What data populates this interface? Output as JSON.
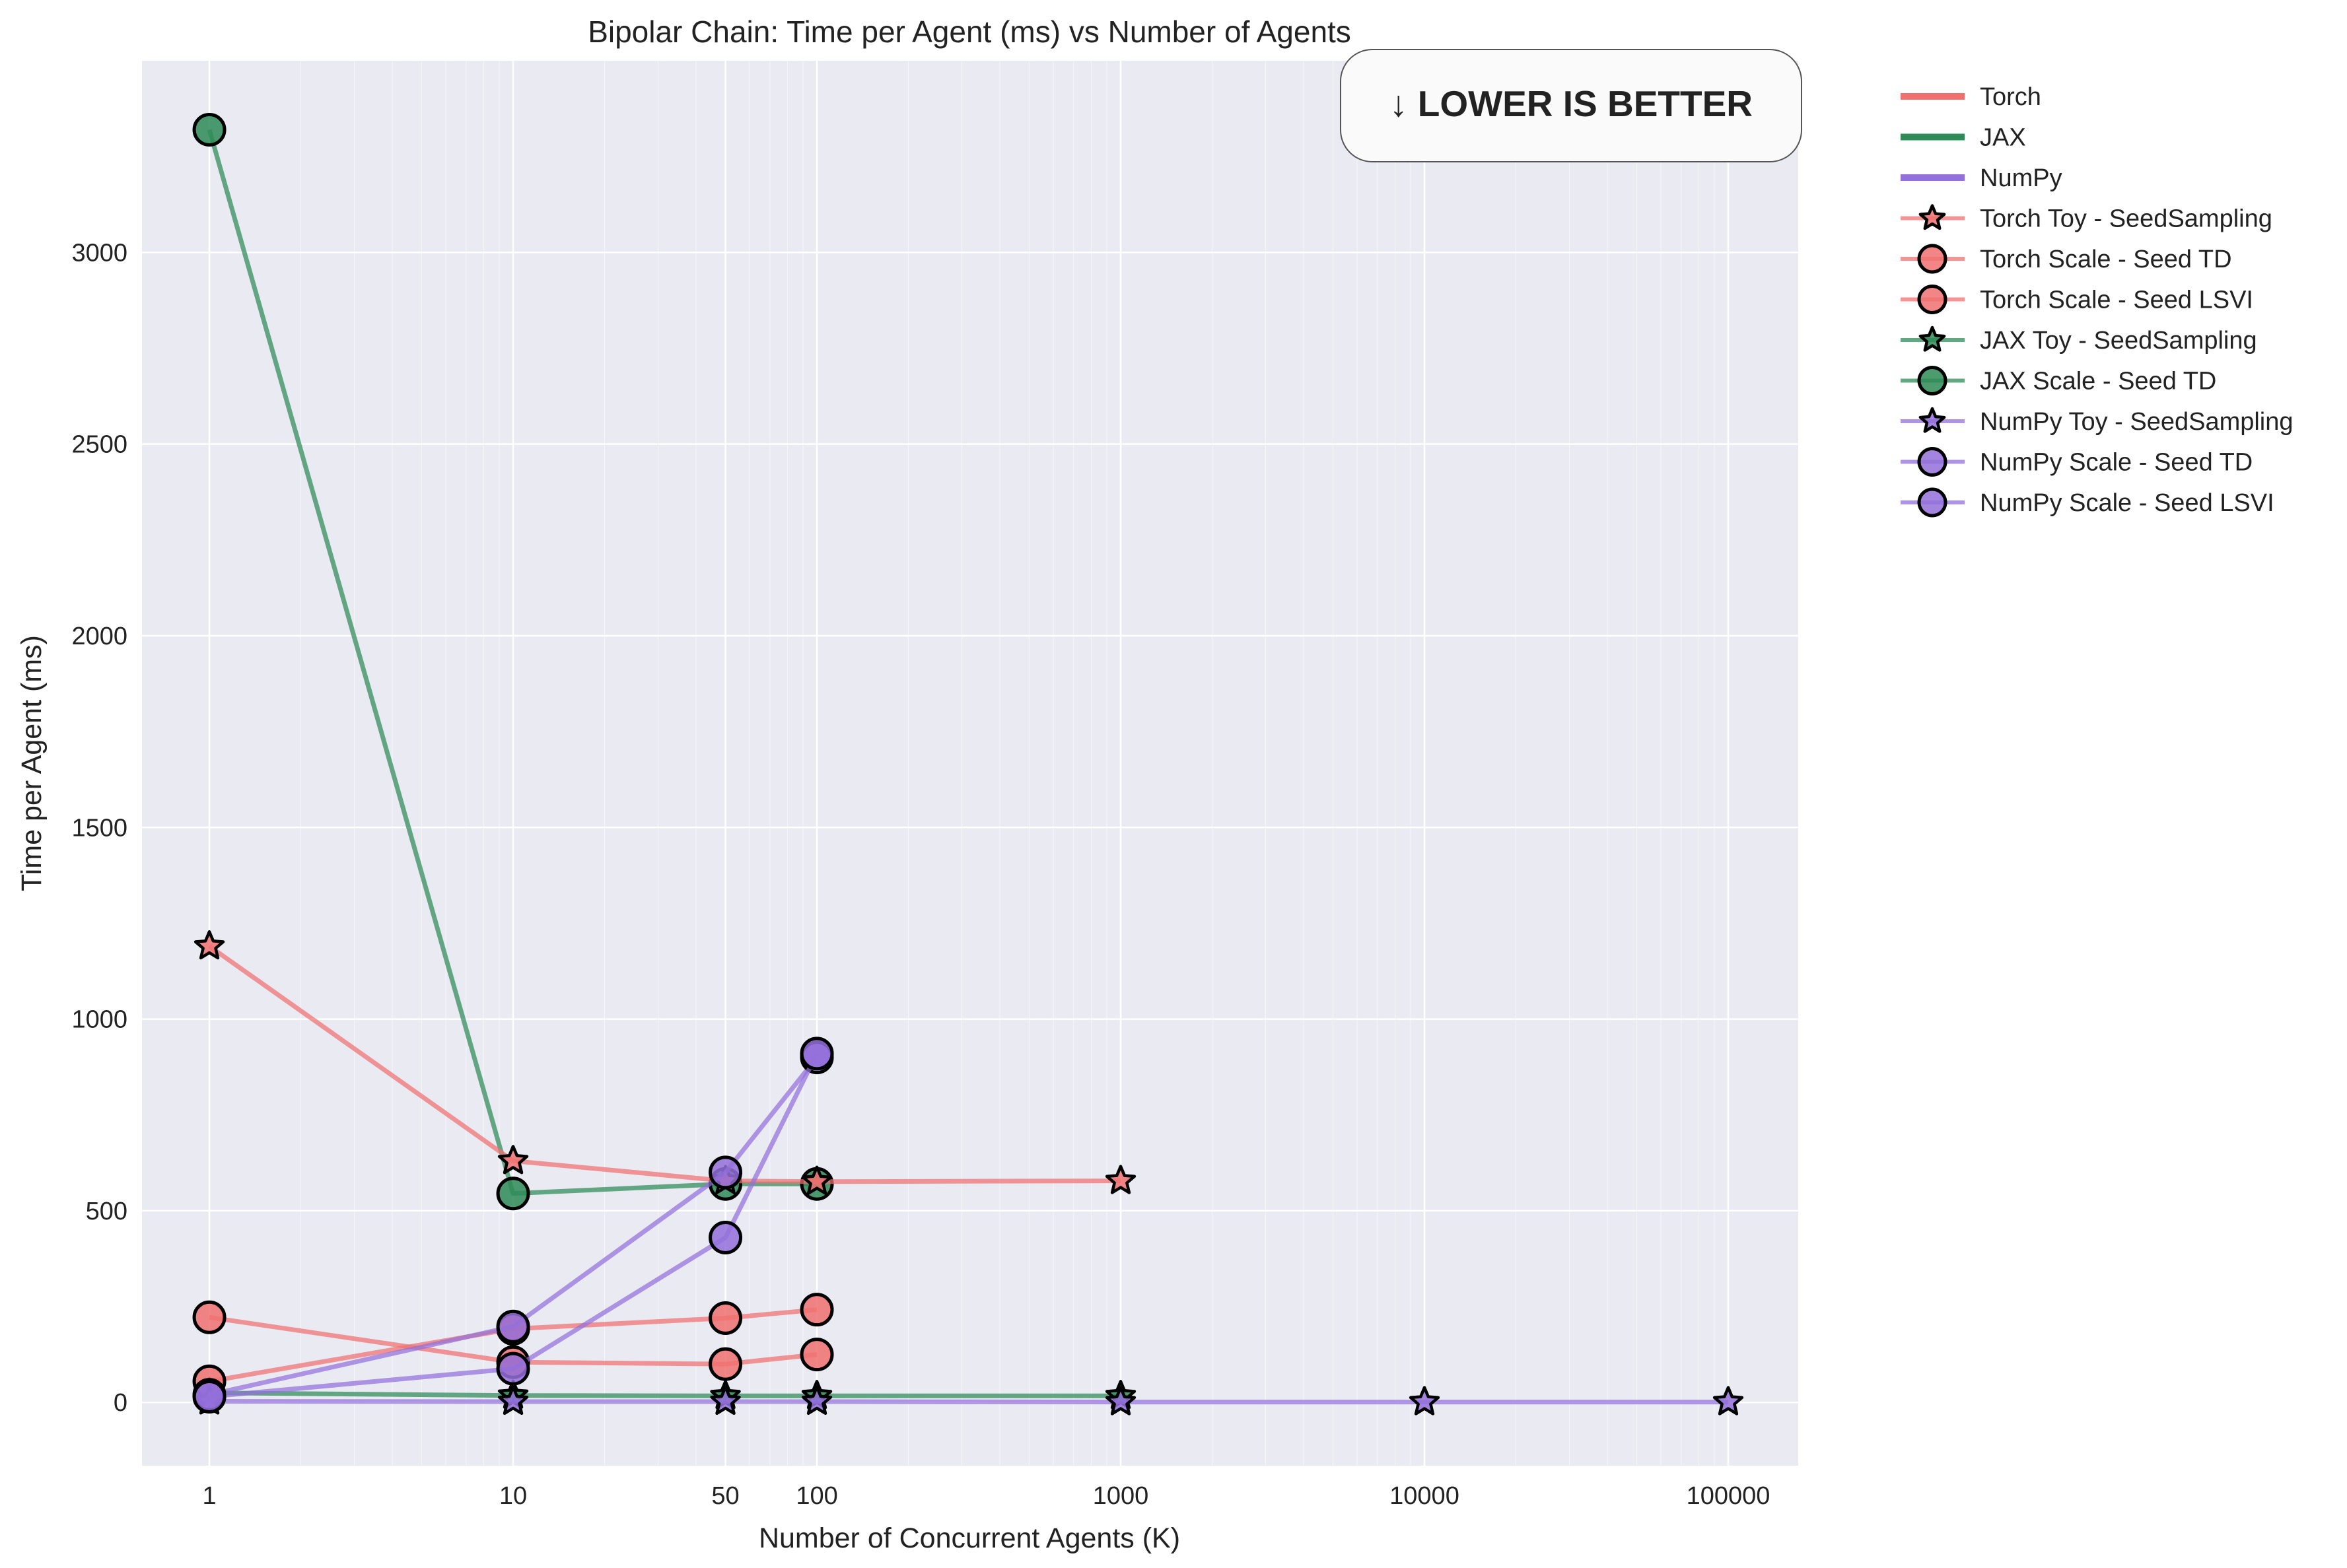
{
  "chart_data": {
    "type": "line",
    "title": "Bipolar Chain: Time per Agent (ms) vs Number of Agents",
    "xlabel": "Number of Concurrent Agents (K)",
    "ylabel": "Time per Agent (ms)",
    "xscale": "log",
    "xlim": [
      0.6,
      170000
    ],
    "ylim": [
      -165,
      3500
    ],
    "xticks": [
      1,
      10,
      50,
      100,
      1000,
      10000,
      100000
    ],
    "xtick_labels": [
      "1",
      "10",
      "50",
      "100",
      "1000",
      "10000",
      "100000"
    ],
    "yticks": [
      0,
      500,
      1000,
      1500,
      2000,
      2500,
      3000
    ],
    "ytick_labels": [
      "0",
      "500",
      "1000",
      "1500",
      "2000",
      "2500",
      "3000"
    ],
    "grid": true,
    "legend_position": "outside-right",
    "annotation": "↓ LOWER IS BETTER",
    "colors": {
      "torch": "#f07070",
      "jax": "#2e8b57",
      "numpy": "#9370db",
      "background": "#eaeaf2"
    },
    "legend_framework_entries": [
      {
        "name": "Torch",
        "color": "#f07070"
      },
      {
        "name": "JAX",
        "color": "#2e8b57"
      },
      {
        "name": "NumPy",
        "color": "#9370db"
      }
    ],
    "series": [
      {
        "name": "JAX Scale - Seed TD",
        "color": "#2e8b57",
        "marker": "circle",
        "x": [
          1,
          10,
          50,
          100
        ],
        "y": [
          3320,
          545,
          570,
          570
        ]
      },
      {
        "name": "JAX Toy - SeedSampling",
        "color": "#2e8b57",
        "marker": "star",
        "x": [
          1,
          10,
          50,
          100,
          1000
        ],
        "y": [
          25,
          18,
          17,
          17,
          17
        ]
      },
      {
        "name": "Torch Toy - SeedSampling",
        "color": "#f07070",
        "marker": "star",
        "x": [
          1,
          10,
          50,
          100,
          1000
        ],
        "y": [
          1190,
          630,
          578,
          576,
          578
        ]
      },
      {
        "name": "Torch Scale - Seed TD",
        "color": "#f07070",
        "marker": "circle",
        "x": [
          1,
          10,
          50,
          100
        ],
        "y": [
          222,
          105,
          100,
          125
        ]
      },
      {
        "name": "Torch Scale - Seed LSVI",
        "color": "#f07070",
        "marker": "circle",
        "x": [
          1,
          10,
          50,
          100
        ],
        "y": [
          55,
          192,
          220,
          242
        ]
      },
      {
        "name": "NumPy Toy - SeedSampling",
        "color": "#9370db",
        "marker": "star",
        "x": [
          1,
          10,
          50,
          100,
          1000,
          10000,
          100000
        ],
        "y": [
          3,
          2,
          2,
          2,
          1,
          1,
          1
        ]
      },
      {
        "name": "NumPy Scale - Seed TD",
        "color": "#9370db",
        "marker": "circle",
        "x": [
          1,
          10,
          50,
          100
        ],
        "y": [
          20,
          198,
          600,
          900
        ]
      },
      {
        "name": "NumPy Scale - Seed LSVI",
        "color": "#9370db",
        "marker": "circle",
        "x": [
          1,
          10,
          50,
          100
        ],
        "y": [
          15,
          88,
          430,
          910
        ]
      }
    ],
    "legend_series_order": [
      "Torch Toy - SeedSampling",
      "Torch Scale - Seed TD",
      "Torch Scale - Seed LSVI",
      "JAX Toy - SeedSampling",
      "JAX Scale - Seed TD",
      "NumPy Toy - SeedSampling",
      "NumPy Scale - Seed TD",
      "NumPy Scale - Seed LSVI"
    ]
  }
}
